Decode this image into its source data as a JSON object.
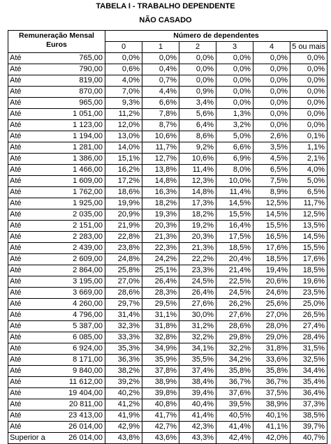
{
  "title": "TABELA I - TRABALHO DEPENDENTE",
  "subtitle": "NÃO CASADO",
  "header": {
    "remuneracao_line1": "Remuneração Mensal",
    "remuneracao_line2": "Euros",
    "dependentes": "Número de dependentes",
    "columns": [
      "0",
      "1",
      "2",
      "3",
      "4",
      "5 ou mais"
    ]
  },
  "rows": [
    {
      "label": "Até",
      "amount": "765,00",
      "values": [
        "0,0%",
        "0,0%",
        "0,0%",
        "0,0%",
        "0,0%",
        "0,0%"
      ]
    },
    {
      "label": "Até",
      "amount": "790,00",
      "values": [
        "0,6%",
        "0,4%",
        "0,0%",
        "0,0%",
        "0,0%",
        "0,0%"
      ]
    },
    {
      "label": "Até",
      "amount": "819,00",
      "values": [
        "4,0%",
        "0,7%",
        "0,0%",
        "0,0%",
        "0,0%",
        "0,0%"
      ]
    },
    {
      "label": "Até",
      "amount": "870,00",
      "values": [
        "7,0%",
        "4,4%",
        "0,9%",
        "0,0%",
        "0,0%",
        "0,0%"
      ]
    },
    {
      "label": "Até",
      "amount": "965,00",
      "values": [
        "9,3%",
        "6,6%",
        "3,4%",
        "0,0%",
        "0,0%",
        "0,0%"
      ]
    },
    {
      "label": "Até",
      "amount": "1 051,00",
      "values": [
        "11,2%",
        "7,8%",
        "5,6%",
        "1,3%",
        "0,0%",
        "0,0%"
      ]
    },
    {
      "label": "Até",
      "amount": "1 123,00",
      "values": [
        "12,0%",
        "8,7%",
        "6,4%",
        "3,2%",
        "0,0%",
        "0,0%"
      ]
    },
    {
      "label": "Até",
      "amount": "1 194,00",
      "values": [
        "13,0%",
        "10,6%",
        "8,6%",
        "5,0%",
        "2,6%",
        "0,1%"
      ]
    },
    {
      "label": "Até",
      "amount": "1 281,00",
      "values": [
        "14,0%",
        "11,7%",
        "9,2%",
        "6,6%",
        "3,5%",
        "1,1%"
      ]
    },
    {
      "label": "Até",
      "amount": "1 386,00",
      "values": [
        "15,1%",
        "12,7%",
        "10,6%",
        "6,9%",
        "4,5%",
        "2,1%"
      ]
    },
    {
      "label": "Até",
      "amount": "1 466,00",
      "values": [
        "16,2%",
        "13,8%",
        "11,4%",
        "8,0%",
        "6,5%",
        "4,0%"
      ]
    },
    {
      "label": "Até",
      "amount": "1 609,00",
      "values": [
        "17,2%",
        "14,8%",
        "12,3%",
        "10,0%",
        "7,5%",
        "5,0%"
      ]
    },
    {
      "label": "Até",
      "amount": "1 762,00",
      "values": [
        "18,6%",
        "16,3%",
        "14,8%",
        "11,4%",
        "8,9%",
        "6,5%"
      ]
    },
    {
      "label": "Até",
      "amount": "1 925,00",
      "values": [
        "19,9%",
        "18,2%",
        "17,3%",
        "14,5%",
        "12,5%",
        "11,7%"
      ]
    },
    {
      "label": "Até",
      "amount": "2 035,00",
      "values": [
        "20,9%",
        "19,3%",
        "18,2%",
        "15,5%",
        "14,5%",
        "12,5%"
      ]
    },
    {
      "label": "Até",
      "amount": "2 151,00",
      "values": [
        "21,9%",
        "20,3%",
        "19,2%",
        "16,4%",
        "15,5%",
        "13,5%"
      ]
    },
    {
      "label": "Até",
      "amount": "2 283,00",
      "values": [
        "22,8%",
        "21,3%",
        "20,3%",
        "17,5%",
        "16,5%",
        "14,5%"
      ]
    },
    {
      "label": "Até",
      "amount": "2 439,00",
      "values": [
        "23,8%",
        "22,3%",
        "21,3%",
        "18,5%",
        "17,6%",
        "15,5%"
      ]
    },
    {
      "label": "Até",
      "amount": "2 609,00",
      "values": [
        "24,8%",
        "24,2%",
        "22,2%",
        "20,4%",
        "18,5%",
        "17,6%"
      ]
    },
    {
      "label": "Até",
      "amount": "2 864,00",
      "values": [
        "25,8%",
        "25,1%",
        "23,3%",
        "21,4%",
        "19,4%",
        "18,5%"
      ]
    },
    {
      "label": "Até",
      "amount": "3 195,00",
      "values": [
        "27,0%",
        "26,4%",
        "24,5%",
        "22,5%",
        "20,6%",
        "19,6%"
      ]
    },
    {
      "label": "Até",
      "amount": "3 669,00",
      "values": [
        "28,6%",
        "28,3%",
        "26,4%",
        "24,5%",
        "24,6%",
        "23,5%"
      ]
    },
    {
      "label": "Até",
      "amount": "4 260,00",
      "values": [
        "29,7%",
        "29,5%",
        "27,6%",
        "26,2%",
        "25,6%",
        "25,0%"
      ]
    },
    {
      "label": "Até",
      "amount": "4 796,00",
      "values": [
        "31,4%",
        "31,1%",
        "30,0%",
        "27,6%",
        "27,0%",
        "26,5%"
      ]
    },
    {
      "label": "Até",
      "amount": "5 387,00",
      "values": [
        "32,3%",
        "31,8%",
        "31,2%",
        "28,6%",
        "28,0%",
        "27,4%"
      ]
    },
    {
      "label": "Até",
      "amount": "6 085,00",
      "values": [
        "33,3%",
        "32,8%",
        "32,2%",
        "29,8%",
        "29,0%",
        "28,4%"
      ]
    },
    {
      "label": "Até",
      "amount": "6 924,00",
      "values": [
        "35,3%",
        "34,9%",
        "34,1%",
        "32,2%",
        "31,8%",
        "31,5%"
      ]
    },
    {
      "label": "Até",
      "amount": "8 171,00",
      "values": [
        "36,3%",
        "35,9%",
        "35,5%",
        "34,2%",
        "33,6%",
        "32,5%"
      ]
    },
    {
      "label": "Até",
      "amount": "9 840,00",
      "values": [
        "38,2%",
        "37,8%",
        "37,4%",
        "35,8%",
        "35,8%",
        "34,4%"
      ]
    },
    {
      "label": "Até",
      "amount": "11 612,00",
      "values": [
        "39,2%",
        "38,9%",
        "38,4%",
        "36,7%",
        "36,7%",
        "35,4%"
      ]
    },
    {
      "label": "Até",
      "amount": "19 404,00",
      "values": [
        "40,2%",
        "39,8%",
        "39,4%",
        "37,6%",
        "37,5%",
        "36,4%"
      ]
    },
    {
      "label": "Até",
      "amount": "20 811,00",
      "values": [
        "41,2%",
        "40,8%",
        "40,4%",
        "39,5%",
        "38,9%",
        "37,3%"
      ]
    },
    {
      "label": "Até",
      "amount": "23 413,00",
      "values": [
        "41,9%",
        "41,7%",
        "41,4%",
        "40,5%",
        "40,1%",
        "38,5%"
      ]
    },
    {
      "label": "Até",
      "amount": "26 014,00",
      "values": [
        "42,9%",
        "42,7%",
        "42,3%",
        "41,4%",
        "41,1%",
        "39,7%"
      ]
    },
    {
      "label": "Superior a",
      "amount": "26 014,00",
      "values": [
        "43,8%",
        "43,6%",
        "43,3%",
        "42,4%",
        "42,0%",
        "40,7%"
      ]
    }
  ]
}
